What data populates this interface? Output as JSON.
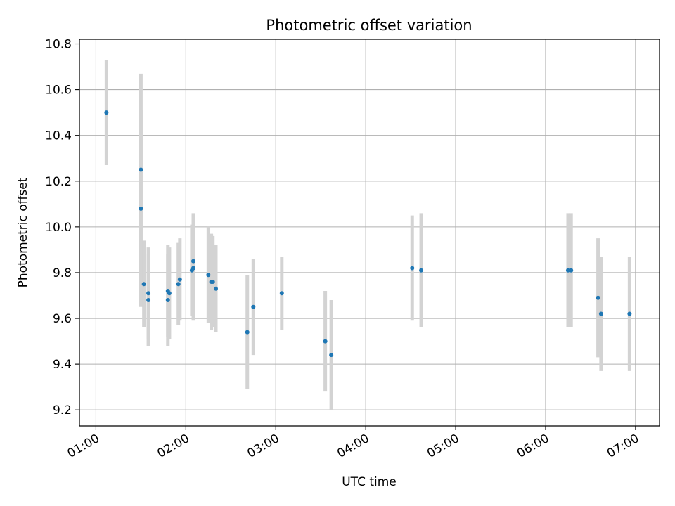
{
  "chart_data": {
    "type": "scatter",
    "title": "Photometric offset variation",
    "xlabel": "UTC time",
    "ylabel": "Photometric offset",
    "x_tick_labels": [
      "01:00",
      "02:00",
      "03:00",
      "04:00",
      "05:00",
      "06:00",
      "07:00"
    ],
    "y_tick_labels": [
      "9.2",
      "9.4",
      "9.6",
      "9.8",
      "10.0",
      "10.2",
      "10.4",
      "10.6",
      "10.8"
    ],
    "xlim": [
      "00:49",
      "07:16"
    ],
    "ylim": [
      9.13,
      10.82
    ],
    "grid": true,
    "point_color": "#1f77b4",
    "errorbar_color": "#d3d3d3",
    "points": [
      {
        "x": "01:07",
        "y": 10.5,
        "err": 0.23
      },
      {
        "x": "01:30",
        "y": 10.25,
        "err": 0.42
      },
      {
        "x": "01:30",
        "y": 10.08,
        "err": 0.43
      },
      {
        "x": "01:32",
        "y": 9.75,
        "err": 0.19
      },
      {
        "x": "01:35",
        "y": 9.71,
        "err": 0.2
      },
      {
        "x": "01:35",
        "y": 9.68,
        "err": 0.2
      },
      {
        "x": "01:48",
        "y": 9.72,
        "err": 0.2
      },
      {
        "x": "01:48",
        "y": 9.68,
        "err": 0.2
      },
      {
        "x": "01:49",
        "y": 9.71,
        "err": 0.2
      },
      {
        "x": "01:55",
        "y": 9.75,
        "err": 0.18
      },
      {
        "x": "01:56",
        "y": 9.77,
        "err": 0.18
      },
      {
        "x": "02:04",
        "y": 9.81,
        "err": 0.2
      },
      {
        "x": "02:05",
        "y": 9.85,
        "err": 0.21
      },
      {
        "x": "02:05",
        "y": 9.82,
        "err": 0.23
      },
      {
        "x": "02:15",
        "y": 9.79,
        "err": 0.21
      },
      {
        "x": "02:17",
        "y": 9.76,
        "err": 0.21
      },
      {
        "x": "02:18",
        "y": 9.76,
        "err": 0.2
      },
      {
        "x": "02:20",
        "y": 9.73,
        "err": 0.19
      },
      {
        "x": "02:41",
        "y": 9.54,
        "err": 0.25
      },
      {
        "x": "02:45",
        "y": 9.65,
        "err": 0.21
      },
      {
        "x": "03:04",
        "y": 9.71,
        "err": 0.16
      },
      {
        "x": "03:33",
        "y": 9.5,
        "err": 0.22
      },
      {
        "x": "03:37",
        "y": 9.44,
        "err": 0.24
      },
      {
        "x": "04:31",
        "y": 9.82,
        "err": 0.23
      },
      {
        "x": "04:37",
        "y": 9.81,
        "err": 0.25
      },
      {
        "x": "06:15",
        "y": 9.81,
        "err": 0.25
      },
      {
        "x": "06:17",
        "y": 9.81,
        "err": 0.25
      },
      {
        "x": "06:35",
        "y": 9.69,
        "err": 0.26
      },
      {
        "x": "06:37",
        "y": 9.62,
        "err": 0.25
      },
      {
        "x": "06:56",
        "y": 9.62,
        "err": 0.25
      }
    ]
  }
}
